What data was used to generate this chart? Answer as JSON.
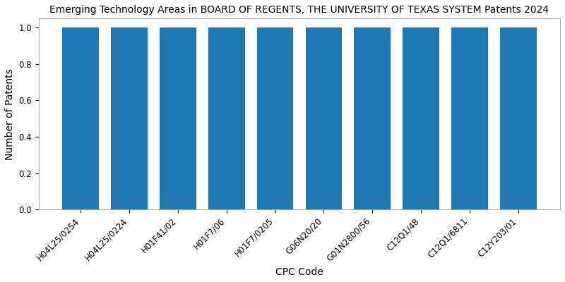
{
  "title": "Emerging Technology Areas in BOARD OF REGENTS, THE UNIVERSITY OF TEXAS SYSTEM Patents 2024",
  "xlabel": "CPC Code",
  "ylabel": "Number of Patents",
  "categories": [
    "H04L25/0254",
    "H04L25/0224",
    "H01F41/02",
    "H01F7/06",
    "H01F7/0205",
    "G06N20/20",
    "G01N2800/56",
    "C12Q1/48",
    "C12Q1/6811",
    "C12Y203/01"
  ],
  "values": [
    1,
    1,
    1,
    1,
    1,
    1,
    1,
    1,
    1,
    1
  ],
  "bar_color": "#1f77b4",
  "ylim": [
    0,
    1.05
  ],
  "figsize": [
    8.0,
    4.0
  ],
  "dpi": 100,
  "title_fontsize": 10,
  "axis_label_fontsize": 10,
  "tick_fontsize": 8.5,
  "bar_width": 0.75,
  "bar_edge_color": "none",
  "show_top_spine": true,
  "show_right_spine": true
}
